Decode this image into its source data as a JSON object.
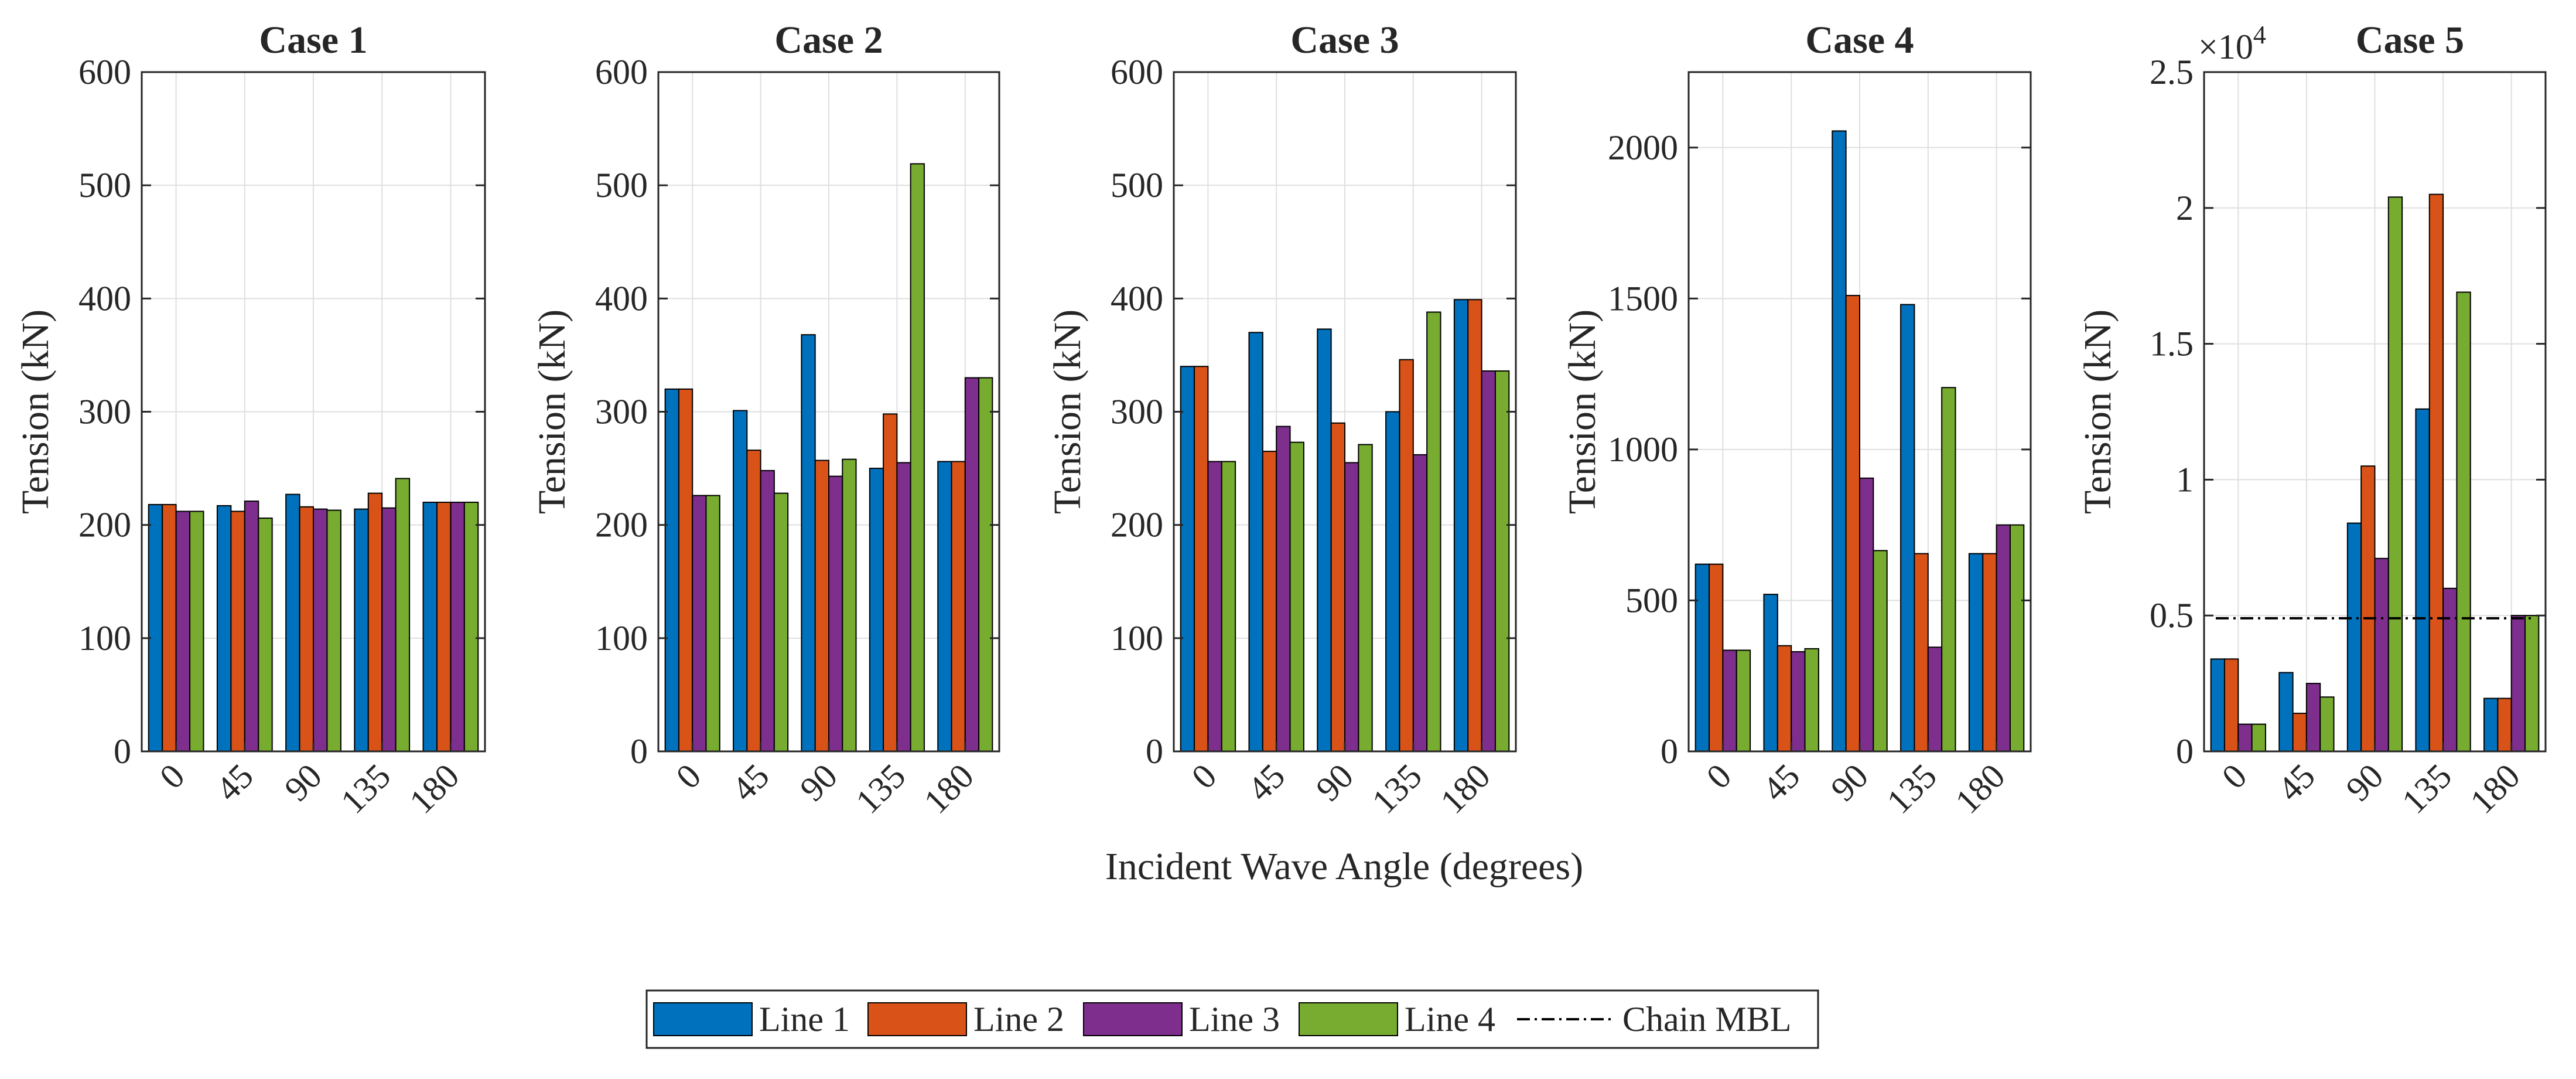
{
  "chart_data": {
    "type": "bar",
    "shared_xlabel": "Incident Wave Angle (degrees)",
    "ylabel": "Tension (kN)",
    "categories": [
      "0",
      "45",
      "90",
      "135",
      "180"
    ],
    "colors": [
      "#0072BD",
      "#D95319",
      "#7E2F8E",
      "#77AC30"
    ],
    "legend": {
      "placement": "bottom-center",
      "entries": [
        "Line 1",
        "Line 2",
        "Line 3",
        "Line 4",
        "Chain MBL"
      ]
    },
    "panels": [
      {
        "title": "Case 1",
        "ylim": [
          0,
          600
        ],
        "ticks": [
          0,
          100,
          200,
          300,
          400,
          500,
          600
        ],
        "tick_labels": [
          "0",
          "100",
          "200",
          "300",
          "400",
          "500",
          "600"
        ],
        "series": [
          {
            "name": "Line 1",
            "values": [
              218,
              217,
              227,
              214,
              220
            ]
          },
          {
            "name": "Line 2",
            "values": [
              218,
              212,
              216,
              228,
              220
            ]
          },
          {
            "name": "Line 3",
            "values": [
              212,
              221,
              214,
              215,
              220
            ]
          },
          {
            "name": "Line 4",
            "values": [
              212,
              206,
              213,
              241,
              220
            ]
          }
        ]
      },
      {
        "title": "Case 2",
        "ylim": [
          0,
          600
        ],
        "ticks": [
          0,
          100,
          200,
          300,
          400,
          500,
          600
        ],
        "tick_labels": [
          "0",
          "100",
          "200",
          "300",
          "400",
          "500",
          "600"
        ],
        "series": [
          {
            "name": "Line 1",
            "values": [
              320,
              301,
              368,
              250,
              256
            ]
          },
          {
            "name": "Line 2",
            "values": [
              320,
              266,
              257,
              298,
              256
            ]
          },
          {
            "name": "Line 3",
            "values": [
              226,
              248,
              243,
              255,
              330
            ]
          },
          {
            "name": "Line 4",
            "values": [
              226,
              228,
              258,
              519,
              330
            ]
          }
        ]
      },
      {
        "title": "Case 3",
        "ylim": [
          0,
          600
        ],
        "ticks": [
          0,
          100,
          200,
          300,
          400,
          500,
          600
        ],
        "tick_labels": [
          "0",
          "100",
          "200",
          "300",
          "400",
          "500",
          "600"
        ],
        "series": [
          {
            "name": "Line 1",
            "values": [
              340,
              370,
              373,
              300,
              399
            ]
          },
          {
            "name": "Line 2",
            "values": [
              340,
              265,
              290,
              346,
              399
            ]
          },
          {
            "name": "Line 3",
            "values": [
              256,
              287,
              255,
              262,
              336
            ]
          },
          {
            "name": "Line 4",
            "values": [
              256,
              273,
              271,
              388,
              336
            ]
          }
        ]
      },
      {
        "title": "Case 4",
        "ylim": [
          0,
          2250
        ],
        "ticks": [
          0,
          500,
          1000,
          1500,
          2000
        ],
        "tick_labels": [
          "0",
          "500",
          "1000",
          "1500",
          "2000"
        ],
        "series": [
          {
            "name": "Line 1",
            "values": [
              620,
              520,
              2055,
              1480,
              655
            ]
          },
          {
            "name": "Line 2",
            "values": [
              620,
              350,
              1510,
              655,
              655
            ]
          },
          {
            "name": "Line 3",
            "values": [
              335,
              330,
              905,
              345,
              750
            ]
          },
          {
            "name": "Line 4",
            "values": [
              335,
              340,
              665,
              1205,
              750
            ]
          }
        ]
      },
      {
        "title": "Case 5",
        "ylim": [
          0,
          25000
        ],
        "ticks": [
          0,
          5000,
          10000,
          15000,
          20000,
          25000
        ],
        "tick_labels": [
          "0",
          "0.5",
          "1",
          "1.5",
          "2",
          "2.5"
        ],
        "exponent": {
          "base": "×10",
          "power": "4"
        },
        "series": [
          {
            "name": "Line 1",
            "values": [
              3400,
              2900,
              8400,
              12600,
              1950
            ]
          },
          {
            "name": "Line 2",
            "values": [
              3400,
              1400,
              10500,
              20500,
              1950
            ]
          },
          {
            "name": "Line 3",
            "values": [
              1000,
              2500,
              7100,
              6000,
              5000
            ]
          },
          {
            "name": "Line 4",
            "values": [
              1000,
              2000,
              20400,
              16900,
              5000
            ]
          }
        ],
        "reference_line": {
          "name": "Chain MBL",
          "value": 4900
        }
      }
    ]
  }
}
